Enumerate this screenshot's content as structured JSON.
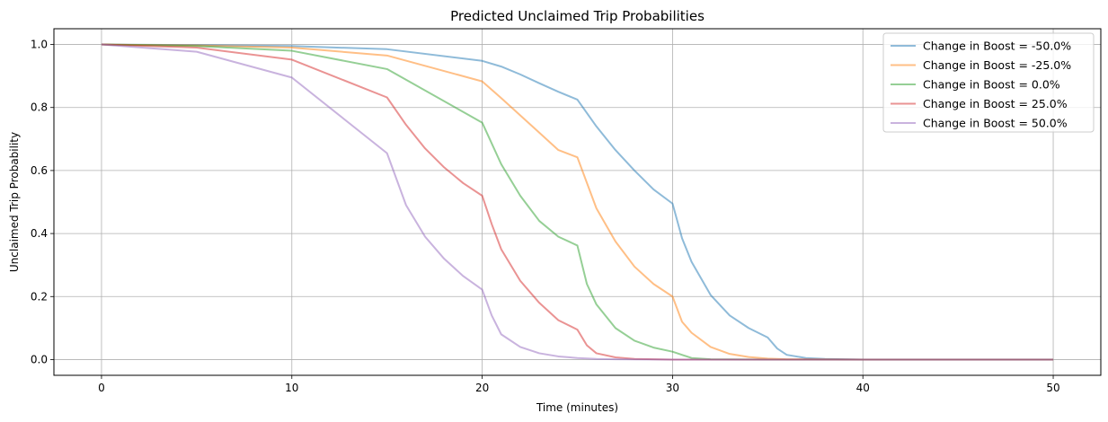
{
  "chart_data": {
    "type": "line",
    "title": "Predicted Unclaimed Trip Probabilities",
    "xlabel": "Time (minutes)",
    "ylabel": "Unclaimed Trip Probability",
    "xlim": [
      -2.5,
      52.5
    ],
    "ylim": [
      -0.05,
      1.05
    ],
    "xticks": [
      0,
      10,
      20,
      30,
      40,
      50
    ],
    "xtick_labels": [
      "0",
      "10",
      "20",
      "30",
      "40",
      "50"
    ],
    "yticks": [
      0.0,
      0.2,
      0.4,
      0.6,
      0.8,
      1.0
    ],
    "ytick_labels": [
      "0.0",
      "0.2",
      "0.4",
      "0.6",
      "0.8",
      "1.0"
    ],
    "grid": true,
    "legend_position": "top-right",
    "series": [
      {
        "name": "Change in Boost = -50.0%",
        "color": "#1f77b4",
        "x": [
          0,
          5,
          10,
          15,
          20,
          21,
          22,
          23,
          24,
          25,
          26,
          27,
          28,
          29,
          30,
          30.5,
          31,
          32,
          33,
          34,
          35,
          35.5,
          36,
          37,
          38,
          40,
          50
        ],
        "y": [
          1.0,
          0.998,
          0.995,
          0.985,
          0.948,
          0.93,
          0.905,
          0.877,
          0.85,
          0.825,
          0.74,
          0.665,
          0.6,
          0.54,
          0.495,
          0.385,
          0.31,
          0.205,
          0.14,
          0.1,
          0.07,
          0.035,
          0.015,
          0.005,
          0.002,
          0.0,
          0.0
        ]
      },
      {
        "name": "Change in Boost = -25.0%",
        "color": "#ff7f0e",
        "x": [
          0,
          5,
          10,
          15,
          20,
          21,
          22,
          23,
          24,
          25,
          26,
          27,
          28,
          29,
          30,
          30.5,
          31,
          32,
          33,
          34,
          35,
          36,
          40,
          50
        ],
        "y": [
          1.0,
          0.997,
          0.99,
          0.965,
          0.883,
          0.83,
          0.775,
          0.72,
          0.665,
          0.642,
          0.48,
          0.375,
          0.295,
          0.24,
          0.2,
          0.12,
          0.085,
          0.04,
          0.018,
          0.008,
          0.003,
          0.001,
          0.0,
          0.0
        ]
      },
      {
        "name": "Change in Boost = 0.0%",
        "color": "#2ca02c",
        "x": [
          0,
          5,
          10,
          15,
          20,
          21,
          22,
          23,
          24,
          25,
          25.5,
          26,
          27,
          28,
          29,
          30,
          31,
          32,
          35,
          50
        ],
        "y": [
          1.0,
          0.995,
          0.98,
          0.922,
          0.752,
          0.62,
          0.52,
          0.44,
          0.39,
          0.362,
          0.24,
          0.175,
          0.1,
          0.06,
          0.038,
          0.025,
          0.005,
          0.001,
          0.0,
          0.0
        ]
      },
      {
        "name": "Change in Boost = 25.0%",
        "color": "#d62728",
        "x": [
          0,
          5,
          10,
          15,
          16,
          17,
          18,
          19,
          20,
          20.5,
          21,
          22,
          23,
          24,
          25,
          25.5,
          26,
          27,
          28,
          30,
          50
        ],
        "y": [
          1.0,
          0.99,
          0.952,
          0.832,
          0.745,
          0.67,
          0.61,
          0.56,
          0.52,
          0.43,
          0.35,
          0.25,
          0.18,
          0.125,
          0.095,
          0.045,
          0.02,
          0.007,
          0.002,
          0.0,
          0.0
        ]
      },
      {
        "name": "Change in Boost = 50.0%",
        "color": "#9467bd",
        "x": [
          0,
          5,
          10,
          15,
          16,
          17,
          18,
          19,
          20,
          20.5,
          21,
          22,
          23,
          24,
          25,
          26,
          27,
          30,
          50
        ],
        "y": [
          1.0,
          0.977,
          0.895,
          0.655,
          0.49,
          0.39,
          0.32,
          0.265,
          0.222,
          0.14,
          0.08,
          0.04,
          0.02,
          0.01,
          0.005,
          0.002,
          0.001,
          0.0,
          0.0
        ]
      }
    ]
  }
}
